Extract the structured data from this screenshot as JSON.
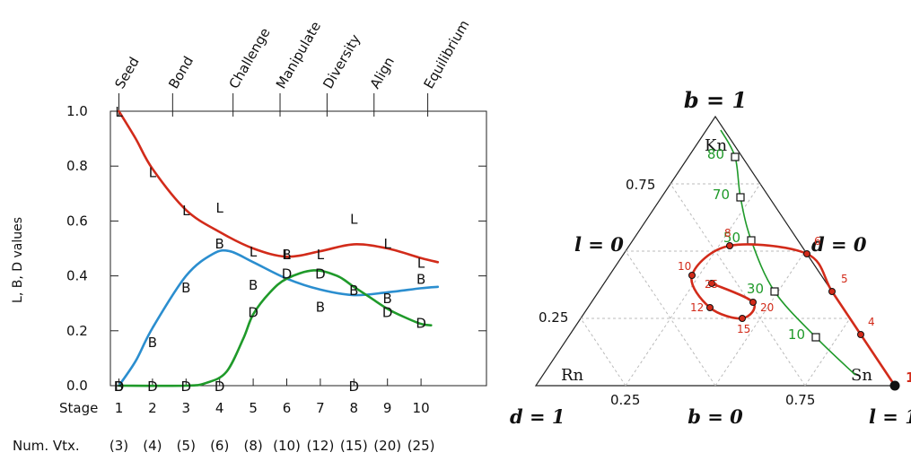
{
  "chart_data": [
    {
      "type": "line",
      "ylabel": "L, B, D values",
      "ylim": [
        0,
        1
      ],
      "yticks": [
        "0.0",
        "0.2",
        "0.4",
        "0.6",
        "0.8",
        "1.0"
      ],
      "x_row_label": "Stage",
      "x": [
        1,
        2,
        3,
        4,
        5,
        6,
        7,
        8,
        9,
        10
      ],
      "x_tick_labels": [
        "1",
        "2",
        "3",
        "4",
        "5",
        "6",
        "7",
        "8",
        "9",
        "10"
      ],
      "num_vtx_label": "Num. Vtx.",
      "num_vtx": [
        "(3)",
        "(4)",
        "(5)",
        "(6)",
        "(8)",
        "(10)",
        "(12)",
        "(15)",
        "(20)",
        "(25)"
      ],
      "top_axis": [
        {
          "label": "Seed",
          "x": 1
        },
        {
          "label": "Bond",
          "x": 2.6
        },
        {
          "label": "Challenge",
          "x": 4.4
        },
        {
          "label": "Manipulate",
          "x": 5.8
        },
        {
          "label": "Diversity",
          "x": 7.2
        },
        {
          "label": "Align",
          "x": 8.6
        },
        {
          "label": "Equilibrium",
          "x": 10.2
        }
      ],
      "series": [
        {
          "name": "L",
          "color": "#d22b1a",
          "points": [
            [
              1,
              1.0
            ],
            [
              2,
              0.78
            ],
            [
              3,
              0.64
            ],
            [
              4,
              0.65
            ],
            [
              5,
              0.49
            ],
            [
              6,
              0.48
            ],
            [
              7,
              0.48
            ],
            [
              8,
              0.61
            ],
            [
              9,
              0.52
            ],
            [
              10,
              0.45
            ]
          ],
          "curve": [
            [
              1,
              1.0
            ],
            [
              1.5,
              0.9
            ],
            [
              2,
              0.79
            ],
            [
              3,
              0.64
            ],
            [
              4,
              0.56
            ],
            [
              5,
              0.5
            ],
            [
              6,
              0.47
            ],
            [
              7,
              0.49
            ],
            [
              8,
              0.515
            ],
            [
              9,
              0.5
            ],
            [
              10,
              0.465
            ],
            [
              10.5,
              0.45
            ]
          ]
        },
        {
          "name": "B",
          "color": "#2b8ecf",
          "points": [
            [
              1,
              0.0
            ],
            [
              2,
              0.16
            ],
            [
              3,
              0.36
            ],
            [
              4,
              0.52
            ],
            [
              5,
              0.37
            ],
            [
              6,
              0.48
            ],
            [
              7,
              0.29
            ],
            [
              8,
              0.35
            ],
            [
              9,
              0.32
            ],
            [
              10,
              0.39
            ]
          ],
          "curve": [
            [
              1,
              0.0
            ],
            [
              1.5,
              0.09
            ],
            [
              2,
              0.21
            ],
            [
              3,
              0.4
            ],
            [
              3.8,
              0.48
            ],
            [
              4.3,
              0.49
            ],
            [
              5,
              0.45
            ],
            [
              6,
              0.39
            ],
            [
              7,
              0.35
            ],
            [
              8,
              0.33
            ],
            [
              9,
              0.34
            ],
            [
              10,
              0.355
            ],
            [
              10.5,
              0.36
            ]
          ]
        },
        {
          "name": "D",
          "color": "#1f9a2a",
          "points": [
            [
              1,
              0.0
            ],
            [
              2,
              0.0
            ],
            [
              3,
              0.0
            ],
            [
              4,
              0.0
            ],
            [
              5,
              0.27
            ],
            [
              6,
              0.41
            ],
            [
              7,
              0.41
            ],
            [
              8,
              0.0
            ],
            [
              9,
              0.27
            ],
            [
              10,
              0.23
            ]
          ],
          "curve": [
            [
              1,
              0.0
            ],
            [
              3,
              0.0
            ],
            [
              3.6,
              0.01
            ],
            [
              4.2,
              0.05
            ],
            [
              4.7,
              0.17
            ],
            [
              5,
              0.26
            ],
            [
              5.5,
              0.34
            ],
            [
              6,
              0.39
            ],
            [
              6.8,
              0.42
            ],
            [
              7.5,
              0.4
            ],
            [
              8,
              0.36
            ],
            [
              8.5,
              0.32
            ],
            [
              9,
              0.28
            ],
            [
              9.5,
              0.25
            ],
            [
              10,
              0.225
            ],
            [
              10.3,
              0.22
            ]
          ]
        }
      ],
      "grid": false
    },
    {
      "type": "scatter",
      "subtype": "ternary",
      "vertex_labels": {
        "top": "b = 1",
        "left": "d = 1",
        "right": "l = 1"
      },
      "side_labels": {
        "left": "l = 0",
        "right": "d = 0",
        "bottom": "b = 0"
      },
      "corner_labels": {
        "top": "Kn",
        "left": "Rn",
        "right": "Sn"
      },
      "left_ticks": [
        "0.75",
        "0.25"
      ],
      "bottom_ticks": [
        "0.25",
        "0.75"
      ],
      "green_series": {
        "color": "#1f9a2a",
        "labels": [
          "80",
          "70",
          "50",
          "30",
          "10"
        ],
        "points_bdl": [
          [
            0.85,
            0.02,
            0.13
          ],
          [
            0.7,
            0.08,
            0.22
          ],
          [
            0.54,
            0.13,
            0.33
          ],
          [
            0.35,
            0.16,
            0.49
          ],
          [
            0.18,
            0.13,
            0.69
          ]
        ]
      },
      "red_series": {
        "color": "#d22b1a",
        "labels": [
          "1",
          "4",
          "5",
          "6",
          "8",
          "10",
          "12",
          "15",
          "20",
          "25"
        ],
        "points_bdl": [
          [
            0.0,
            0.0,
            1.0
          ],
          [
            0.19,
            0.0,
            0.81
          ],
          [
            0.35,
            0.0,
            0.65
          ],
          [
            0.49,
            0.0,
            0.51
          ],
          [
            0.52,
            0.2,
            0.28
          ],
          [
            0.41,
            0.36,
            0.23
          ],
          [
            0.29,
            0.37,
            0.34
          ],
          [
            0.25,
            0.3,
            0.45
          ],
          [
            0.31,
            0.24,
            0.45
          ],
          [
            0.38,
            0.32,
            0.3
          ]
        ]
      }
    }
  ]
}
